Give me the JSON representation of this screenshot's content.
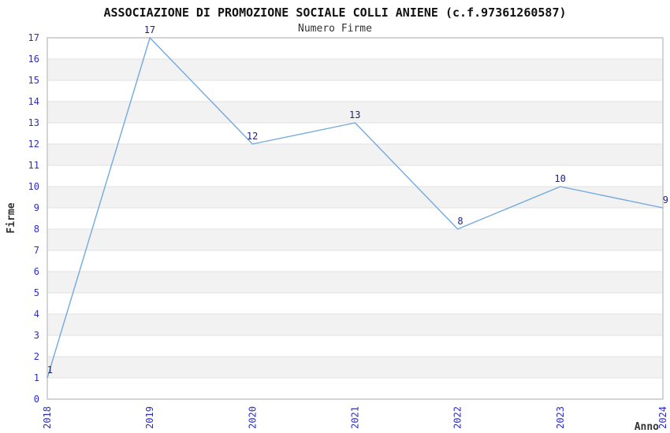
{
  "chart_data": {
    "type": "line",
    "title": "ASSOCIAZIONE DI PROMOZIONE SOCIALE COLLI ANIENE (c.f.97361260587)",
    "subtitle": "Numero Firme",
    "xlabel": "Anno",
    "ylabel": "Firme",
    "x": [
      "2018",
      "2019",
      "2020",
      "2021",
      "2022",
      "2023",
      "2024"
    ],
    "series": [
      {
        "name": "Numero Firme",
        "values": [
          1,
          17,
          12,
          13,
          8,
          10,
          9
        ]
      }
    ],
    "point_labels": [
      "1",
      "17",
      "12",
      "13",
      "8",
      "10",
      "9"
    ],
    "ylim": [
      0,
      17
    ],
    "ytick_step": 1,
    "grid": "horizontal-bands-alternating",
    "legend_position": "none",
    "colors": {
      "line": "#74a9df",
      "tick_label": "#2b2bd0",
      "point_label": "#1f1f78",
      "band_fill": "#f2f2f2",
      "gridline": "#e2e2e2",
      "spine": "#d4d4d4",
      "title": "#111111",
      "axis_label": "#333333",
      "background": "#ffffff"
    }
  }
}
